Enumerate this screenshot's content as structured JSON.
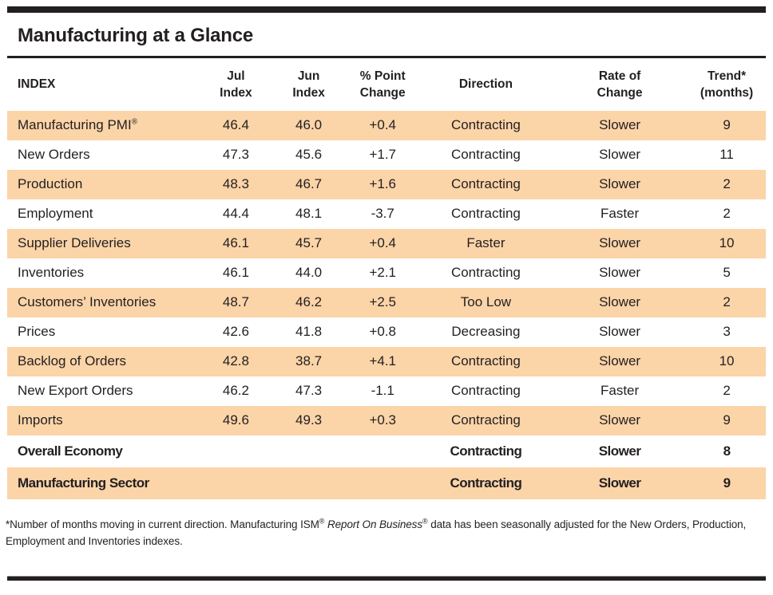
{
  "page": {
    "title": "Manufacturing at a Glance",
    "colors": {
      "row_highlight": "#FBD4A8",
      "bar": "#231F20",
      "text": "#231F20"
    }
  },
  "table": {
    "head": {
      "index": "INDEX",
      "jul": [
        "Jul",
        "Index"
      ],
      "jun": [
        "Jun",
        "Index"
      ],
      "change": [
        "% Point",
        "Change"
      ],
      "direction": "Direction",
      "rate": [
        "Rate of",
        "Change"
      ],
      "trend": [
        "Trend*",
        "(months)"
      ]
    },
    "rows": [
      {
        "name": "Manufacturing PMI",
        "sup": "®",
        "jul": "46.4",
        "jun": "46.0",
        "change": "+0.4",
        "direction": "Contracting",
        "rate": "Slower",
        "trend": "9"
      },
      {
        "name": "New Orders",
        "jul": "47.3",
        "jun": "45.6",
        "change": "+1.7",
        "direction": "Contracting",
        "rate": "Slower",
        "trend": "11"
      },
      {
        "name": "Production",
        "jul": "48.3",
        "jun": "46.7",
        "change": "+1.6",
        "direction": "Contracting",
        "rate": "Slower",
        "trend": "2"
      },
      {
        "name": "Employment",
        "jul": "44.4",
        "jun": "48.1",
        "change": "-3.7",
        "direction": "Contracting",
        "rate": "Faster",
        "trend": "2"
      },
      {
        "name": "Supplier Deliveries",
        "jul": "46.1",
        "jun": "45.7",
        "change": "+0.4",
        "direction": "Faster",
        "rate": "Slower",
        "trend": "10"
      },
      {
        "name": "Inventories",
        "jul": "46.1",
        "jun": "44.0",
        "change": "+2.1",
        "direction": "Contracting",
        "rate": "Slower",
        "trend": "5"
      },
      {
        "name": "Customers’ Inventories",
        "jul": "48.7",
        "jun": "46.2",
        "change": "+2.5",
        "direction": "Too Low",
        "rate": "Slower",
        "trend": "2"
      },
      {
        "name": "Prices",
        "jul": "42.6",
        "jun": "41.8",
        "change": "+0.8",
        "direction": "Decreasing",
        "rate": "Slower",
        "trend": "3"
      },
      {
        "name": "Backlog of Orders",
        "jul": "42.8",
        "jun": "38.7",
        "change": "+4.1",
        "direction": "Contracting",
        "rate": "Slower",
        "trend": "10"
      },
      {
        "name": "New Export Orders",
        "jul": "46.2",
        "jun": "47.3",
        "change": "-1.1",
        "direction": "Contracting",
        "rate": "Faster",
        "trend": "2"
      },
      {
        "name": "Imports",
        "jul": "49.6",
        "jun": "49.3",
        "change": "+0.3",
        "direction": "Contracting",
        "rate": "Slower",
        "trend": "9"
      }
    ],
    "summary_rows": [
      {
        "name": "Overall Economy",
        "direction": "Contracting",
        "rate": "Slower",
        "trend": "8"
      },
      {
        "name": "Manufacturing Sector",
        "direction": "Contracting",
        "rate": "Slower",
        "trend": "9"
      }
    ]
  },
  "footnote": {
    "text_before": "*Number of months moving in current direction. Manufacturing ISM",
    "reg1": "®",
    "italic": " Report On Business",
    "reg2": "®",
    "text_after": " data has been seasonally adjusted for the New Orders, Production, Employment and Inventories indexes."
  }
}
